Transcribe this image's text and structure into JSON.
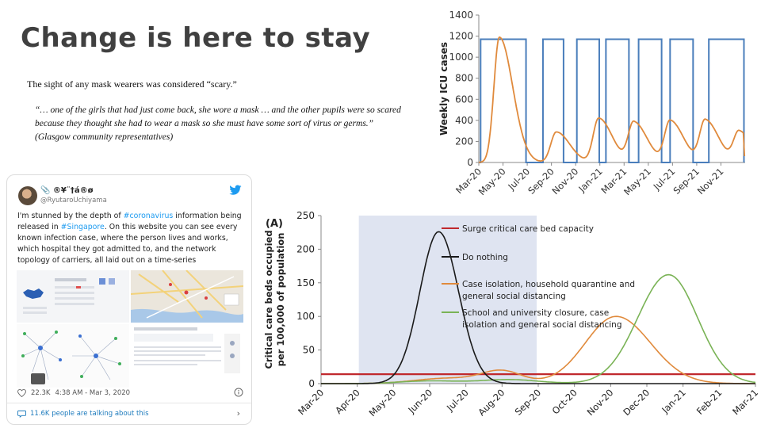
{
  "slide": {
    "title": "Change is here to stay",
    "intro": "The sight of any mask wearers was considered “scary.”",
    "quote_lines": [
      "“… one of the girls that had just come back, she wore a mask … and the other pupils were so scared",
      "because they thought she had to wear a mask so she must have some sort of virus or germs.”",
      "(Glasgow community representatives)"
    ]
  },
  "tweet": {
    "display_name": "📎 ®¥¨†á®ø",
    "handle": "@RyutaroUchiyama",
    "body_parts": [
      "I'm stunned by the depth of ",
      "#coronavirus",
      " information being released in ",
      "#Singapore",
      ". On this website you can see every known infection case, where the person lives and works, which hospital they got admitted to, and the network topology of carriers, all laid out on a time-series"
    ],
    "likes": "22.3K",
    "timestamp": "4:38 AM - Mar 3, 2020",
    "talking": "11.6K people are talking about this",
    "icons": [
      "twitter-bird-icon",
      "heart-icon",
      "info-icon",
      "comment-icon",
      "chevron-right-icon"
    ]
  },
  "chart_data": [
    {
      "type": "line",
      "ylabel": "Weekly ICU cases",
      "xlabel": "",
      "ylim": [
        0,
        1400
      ],
      "yticks": [
        0,
        200,
        400,
        600,
        800,
        1000,
        1200,
        1400
      ],
      "x_ticks": [
        "Mar-20",
        "May-20",
        "Jul-20",
        "Sep-20",
        "Nov-20",
        "Jan-21",
        "Mar-21",
        "May-21",
        "Jul-21",
        "Sep-21",
        "Nov-21"
      ],
      "grid": false,
      "colors": {
        "control": "#4a7ebb",
        "cases": "#e08a3c"
      },
      "series": [
        {
          "key": "control",
          "segments_on": [
            [
              "Apr-20",
              "Jul-20"
            ],
            [
              "Aug-20",
              "Oct-20"
            ],
            [
              "Nov-20",
              "Jan-21"
            ],
            [
              "Feb-21",
              "Apr-21"
            ],
            [
              "Apr-21",
              "Jun-21"
            ],
            [
              "Jul-21",
              "Sep-21"
            ],
            [
              "Oct-21",
              "Dec-21"
            ]
          ],
          "on_value": 1170,
          "off_value": 0
        },
        {
          "key": "cases",
          "peaks": [
            {
              "x": 0.85,
              "value": 1190
            },
            {
              "x": 3.2,
              "value": 290
            },
            {
              "x": 4.95,
              "value": 420
            },
            {
              "x": 6.4,
              "value": 380
            },
            {
              "x": 7.9,
              "value": 395
            },
            {
              "x": 9.35,
              "value": 400
            },
            {
              "x": 10.75,
              "value": 290
            }
          ]
        }
      ]
    },
    {
      "type": "line",
      "panel_label": "(A)",
      "ylabel": "Critical care beds occupied\nper 100,000 of population",
      "xlabel": "",
      "ylim": [
        0,
        250
      ],
      "yticks": [
        0,
        50,
        100,
        150,
        200,
        250
      ],
      "x_ticks": [
        "Mar-20",
        "Apr-20",
        "May-20",
        "Jun-20",
        "Jul-20",
        "Aug-20",
        "Sep-20",
        "Oct-20",
        "Nov-20",
        "Dec-20",
        "Jan-21",
        "Feb-21",
        "Mar-21"
      ],
      "shaded_range": [
        "Apr-20",
        "Sep-20"
      ],
      "shade_color": "#dfe4f1",
      "legend": [
        {
          "label": "Surge critical care bed capacity",
          "color": "#c0282d"
        },
        {
          "label": "Do nothing",
          "color": "#1a1a1a"
        },
        {
          "label": "Case isolation, household quarantine and\ngeneral social distancing",
          "color": "#e08a3c"
        },
        {
          "label": "School and university closure, case\nisolation and general social distancing",
          "color": "#7ab356"
        }
      ],
      "series": [
        {
          "name": "Surge critical care bed capacity",
          "flat_value": 14
        },
        {
          "name": "Do nothing",
          "peak_x": 3.25,
          "peak_value": 226
        },
        {
          "name": "Case isolation, household quarantine and general social distancing",
          "peak_x": 8.15,
          "peak_value": 100
        },
        {
          "name": "School and university closure, case isolation and general social distancing",
          "peak_x": 9.6,
          "peak_value": 162
        }
      ]
    }
  ]
}
